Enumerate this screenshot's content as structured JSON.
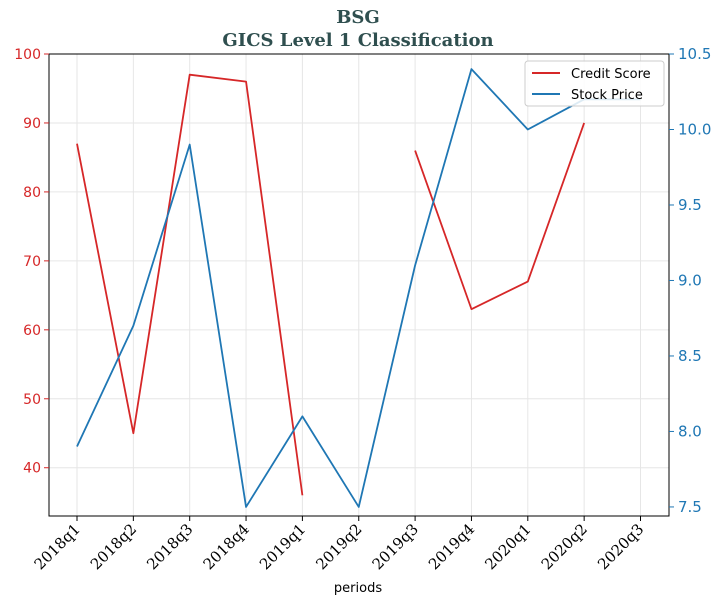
{
  "chart_data": {
    "type": "line",
    "title": "BSG",
    "subtitle": "GICS Level 1 Classification",
    "xlabel": "periods",
    "ylabel_left": "",
    "ylabel_right": "",
    "categories": [
      "2018q1",
      "2018q2",
      "2018q3",
      "2018q4",
      "2019q1",
      "2019q2",
      "2019q3",
      "2019q4",
      "2020q1",
      "2020q2",
      "2020q3"
    ],
    "ylim_left": [
      33,
      100
    ],
    "ylim_right": [
      7.44,
      10.5
    ],
    "yticks_left": [
      40,
      50,
      60,
      70,
      80,
      90,
      100
    ],
    "yticks_right": [
      "7.5",
      "8.0",
      "8.5",
      "9.0",
      "9.5",
      "10.0",
      "10.5"
    ],
    "grid": true,
    "legend_position": "top-right",
    "colors": {
      "left_axis": "#d62728",
      "right_axis": "#1f77b4"
    },
    "series": [
      {
        "name": "Credit Score",
        "axis": "left",
        "color": "#d62728",
        "values": [
          87,
          45,
          97,
          96,
          36,
          null,
          86,
          63,
          67,
          90,
          null
        ]
      },
      {
        "name": "Stock Price",
        "axis": "right",
        "color": "#1f77b4",
        "values": [
          7.9,
          8.7,
          9.9,
          7.5,
          8.1,
          7.5,
          9.1,
          10.4,
          10.0,
          10.2,
          10.2
        ]
      }
    ]
  }
}
